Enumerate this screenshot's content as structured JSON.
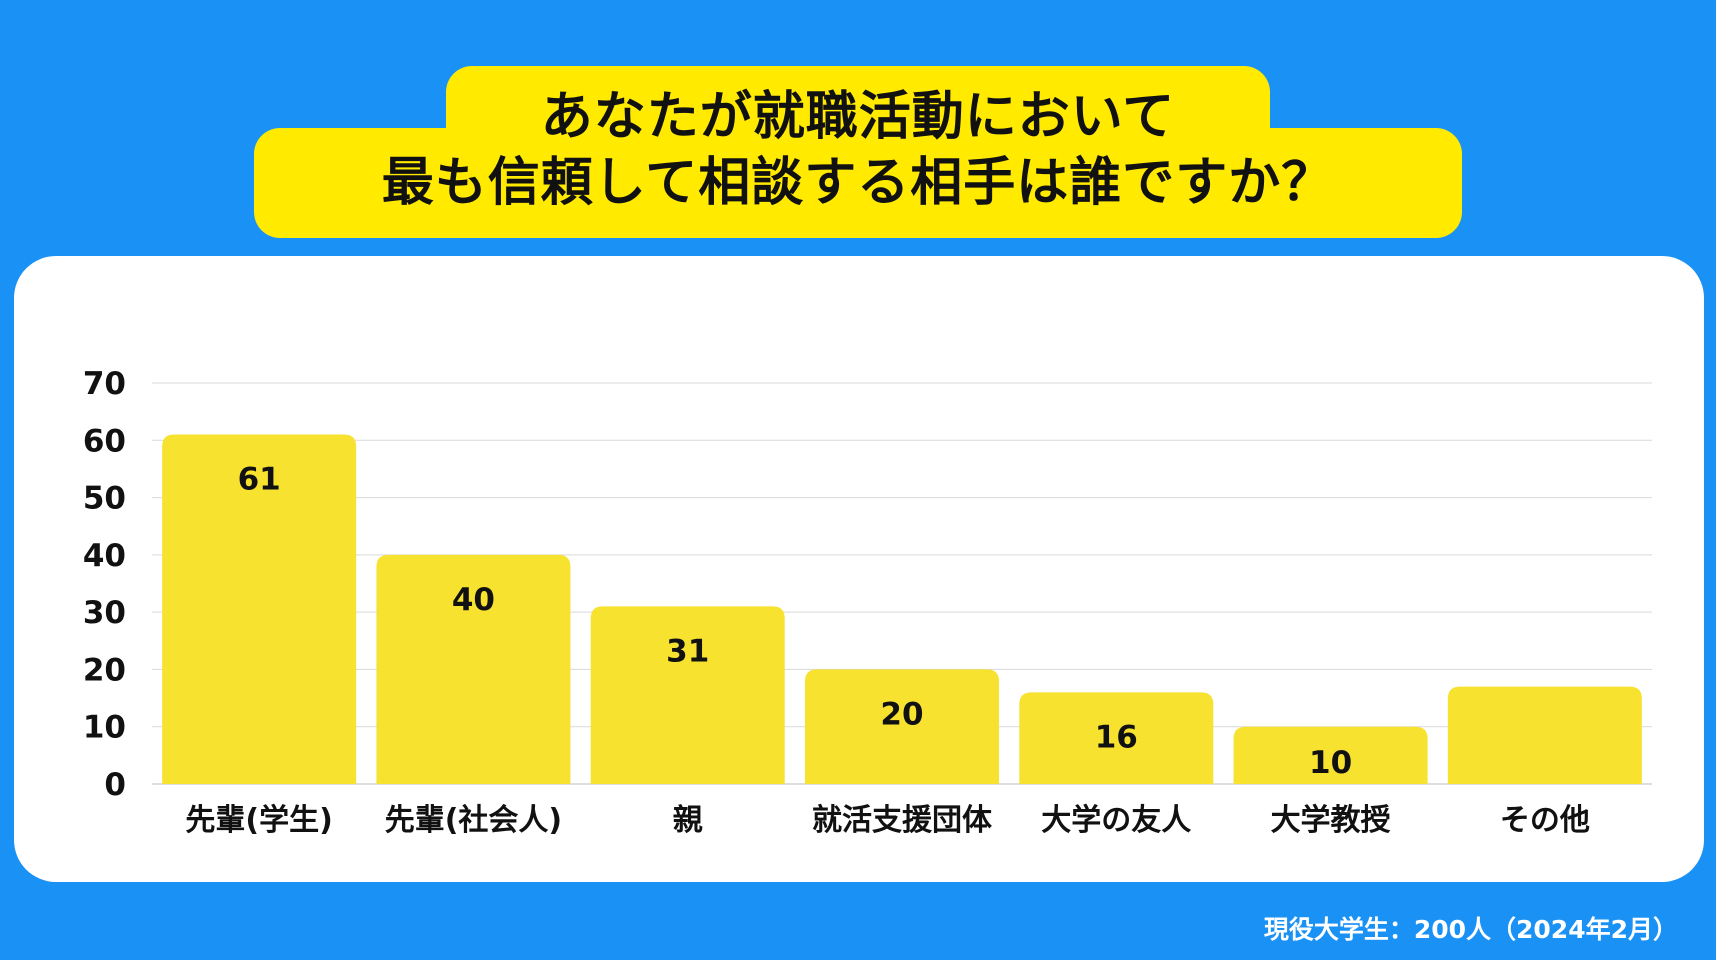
{
  "title": {
    "line1": "あなたが就職活動において",
    "line2": "最も信頼して相談する相手は誰ですか？"
  },
  "footnote": "現役大学生：200人（2024年2月）",
  "colors": {
    "background": "#1a91f5",
    "title_box": "#ffea00",
    "bar": "#f7e22f",
    "grid": "#d9d9d9"
  },
  "chart_data": {
    "type": "bar",
    "categories": [
      "先輩(学生)",
      "先輩(社会人)",
      "親",
      "就活支援団体",
      "大学の友人",
      "大学教授",
      "その他"
    ],
    "values": [
      61,
      40,
      31,
      20,
      16,
      10,
      17
    ],
    "data_labels": [
      "61",
      "40",
      "31",
      "20",
      "16",
      "10",
      ""
    ],
    "ylim": [
      0,
      70
    ],
    "yticks": [
      0,
      10,
      20,
      30,
      40,
      50,
      60,
      70
    ],
    "grid": true,
    "legend": "none"
  }
}
